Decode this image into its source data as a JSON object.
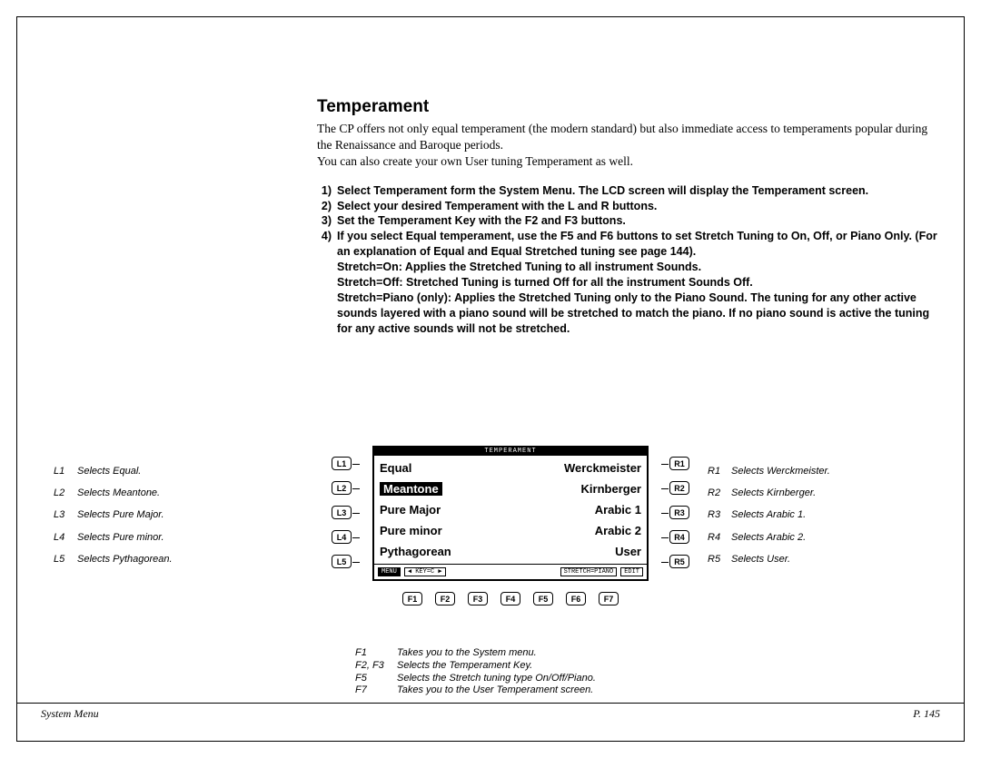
{
  "title": "Temperament",
  "intro": [
    "The CP offers not only equal temperament (the modern standard) but also immediate access to temperaments popular during the Renaissance and Baroque periods.",
    "You can also create your own User tuning Temperament as well."
  ],
  "steps": [
    {
      "n": "1)",
      "t": "Select Temperament form the System Menu.  The LCD screen will display the Temperament screen."
    },
    {
      "n": "2)",
      "t": "Select your desired Temperament with the L and R buttons."
    },
    {
      "n": "3)",
      "t": "Set the Temperament Key with the F2 and F3 buttons."
    },
    {
      "n": "4)",
      "t": "If you select Equal temperament, use the F5 and F6 buttons to set Stretch Tuning to On, Off, or Piano Only. (For an explanation of Equal and Equal Stretched tuning see page 144)."
    }
  ],
  "substeps": [
    "Stretch=On: Applies the Stretched Tuning to all instrument Sounds.",
    "Stretch=Off: Stretched Tuning is turned Off for all the instrument Sounds Off.",
    "Stretch=Piano (only): Applies the Stretched Tuning only to the Piano Sound.  The tuning for any other active sounds layered with a piano sound will be stretched to match the piano.  If no piano sound is active the tuning for any active sounds will not be stretched."
  ],
  "lcd": {
    "title": "TEMPERAMENT",
    "rows": [
      {
        "l": "Equal",
        "r": "Werckmeister",
        "sel": false
      },
      {
        "l": "Meantone",
        "r": "Kirnberger",
        "sel": true
      },
      {
        "l": "Pure Major",
        "r": "Arabic 1",
        "sel": false
      },
      {
        "l": "Pure minor",
        "r": "Arabic 2",
        "sel": false
      },
      {
        "l": "Pythagorean",
        "r": "User",
        "sel": false
      }
    ],
    "footer": {
      "menu": "MENU",
      "key": "◀ KEY=C  ▶",
      "stretch": "STRETCH=PIANO",
      "edit": "EDIT"
    }
  },
  "hw": {
    "L": [
      "L1",
      "L2",
      "L3",
      "L4",
      "L5"
    ],
    "R": [
      "R1",
      "R2",
      "R3",
      "R4",
      "R5"
    ],
    "F": [
      "F1",
      "F2",
      "F3",
      "F4",
      "F5",
      "F6",
      "F7"
    ]
  },
  "legendL": [
    {
      "k": "L1",
      "t": "Selects Equal."
    },
    {
      "k": "L2",
      "t": "Selects Meantone."
    },
    {
      "k": "L3",
      "t": "Selects Pure Major."
    },
    {
      "k": "L4",
      "t": "Selects Pure minor."
    },
    {
      "k": "L5",
      "t": "Selects Pythagorean."
    }
  ],
  "legendR": [
    {
      "k": "R1",
      "t": "Selects Werckmeister."
    },
    {
      "k": "R2",
      "t": "Selects Kirnberger."
    },
    {
      "k": "R3",
      "t": "Selects Arabic 1."
    },
    {
      "k": "R4",
      "t": "Selects Arabic 2."
    },
    {
      "k": "R5",
      "t": "Selects User."
    }
  ],
  "legendF": [
    {
      "k": "F1",
      "t": "Takes you to the System menu."
    },
    {
      "k": "F2, F3",
      "t": "Selects the Temperament Key."
    },
    {
      "k": "F5",
      "t": "Selects the Stretch tuning type On/Off/Piano."
    },
    {
      "k": "F7",
      "t": "Takes you to the User Temperament screen."
    }
  ],
  "footer": {
    "left": "System Menu",
    "right": "P. 145"
  }
}
